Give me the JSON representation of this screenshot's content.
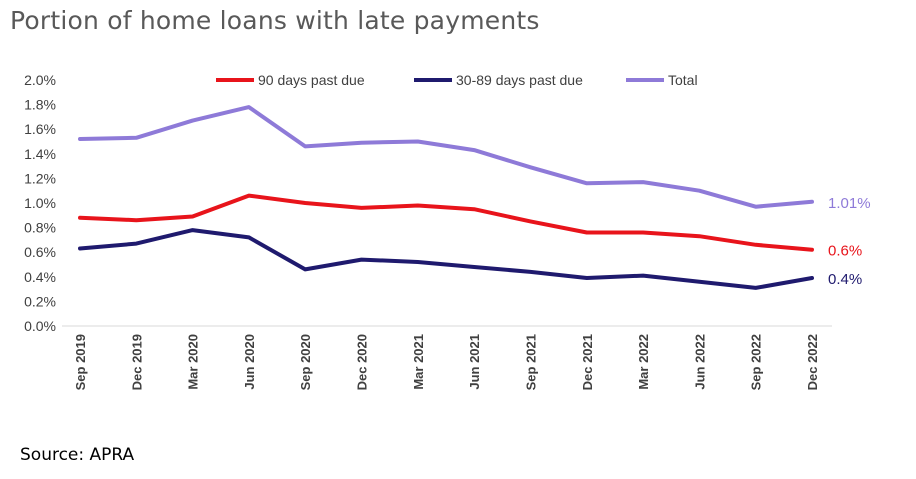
{
  "title": "Portion of home loans with late payments",
  "source": "Source: APRA",
  "chart_data": {
    "type": "line",
    "title": "Portion of home loans with late payments",
    "xlabel": "",
    "ylabel": "",
    "ylim": [
      0,
      0.02
    ],
    "yticks": [
      "0.0%",
      "0.2%",
      "0.4%",
      "0.6%",
      "0.8%",
      "1.0%",
      "1.2%",
      "1.4%",
      "1.6%",
      "1.8%",
      "2.0%"
    ],
    "categories": [
      "Sep 2019",
      "Dec 2019",
      "Mar 2020",
      "Jun 2020",
      "Sep 2020",
      "Dec 2020",
      "Mar 2021",
      "Jun 2021",
      "Sep 2021",
      "Dec 2021",
      "Mar 2022",
      "Jun 2022",
      "Sep 2022",
      "Dec 2022"
    ],
    "grid": false,
    "legend_position": "top",
    "series": [
      {
        "name": "90 days past due",
        "color": "#e8141b",
        "values": [
          0.0088,
          0.0086,
          0.0089,
          0.0106,
          0.01,
          0.0096,
          0.0098,
          0.0095,
          0.0085,
          0.0076,
          0.0076,
          0.0073,
          0.0066,
          0.0062
        ],
        "end_label": "0.6%"
      },
      {
        "name": "30-89 days past due",
        "color": "#1f1a6e",
        "values": [
          0.0063,
          0.0067,
          0.0078,
          0.0072,
          0.0046,
          0.0054,
          0.0052,
          0.0048,
          0.0044,
          0.0039,
          0.0041,
          0.0036,
          0.0031,
          0.0039
        ],
        "end_label": "0.4%"
      },
      {
        "name": "Total",
        "color": "#8e7ad8",
        "values": [
          0.0152,
          0.0153,
          0.0167,
          0.0178,
          0.0146,
          0.0149,
          0.015,
          0.0143,
          0.0129,
          0.0116,
          0.0117,
          0.011,
          0.0097,
          0.0101
        ],
        "end_label": "1.01%"
      }
    ]
  }
}
